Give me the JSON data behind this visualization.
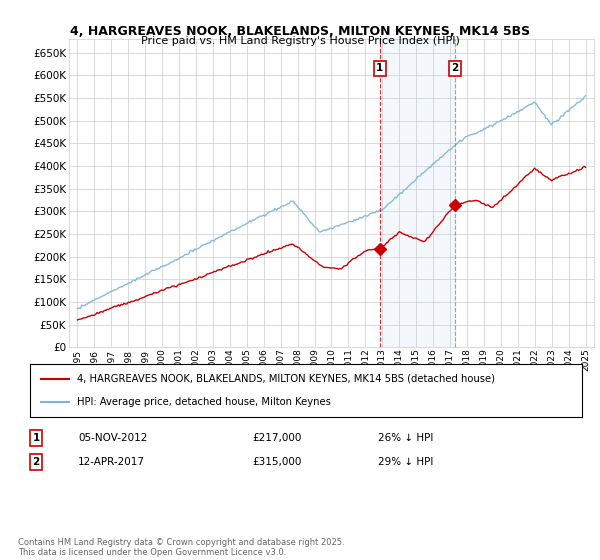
{
  "title": "4, HARGREAVES NOOK, BLAKELANDS, MILTON KEYNES, MK14 5BS",
  "subtitle": "Price paid vs. HM Land Registry's House Price Index (HPI)",
  "legend_entry1": "4, HARGREAVES NOOK, BLAKELANDS, MILTON KEYNES, MK14 5BS (detached house)",
  "legend_entry2": "HPI: Average price, detached house, Milton Keynes",
  "transaction1_date": "05-NOV-2012",
  "transaction1_price": "£217,000",
  "transaction1_hpi": "26% ↓ HPI",
  "transaction2_date": "12-APR-2017",
  "transaction2_price": "£315,000",
  "transaction2_hpi": "29% ↓ HPI",
  "footnote": "Contains HM Land Registry data © Crown copyright and database right 2025.\nThis data is licensed under the Open Government Licence v3.0.",
  "hpi_color": "#7ab4d8",
  "price_color": "#cc0000",
  "transaction1_x": 2012.85,
  "transaction2_x": 2017.28,
  "transaction1_y": 217000,
  "transaction2_y": 315000,
  "ylim": [
    0,
    680000
  ],
  "xlim": [
    1994.5,
    2025.5
  ],
  "background_color": "#ffffff",
  "grid_color": "#cccccc"
}
